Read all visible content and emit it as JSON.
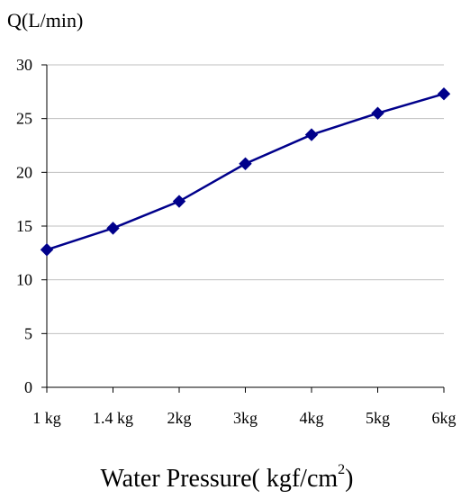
{
  "chart_data": {
    "type": "line",
    "title": "",
    "ylabel": "Q(L/min)",
    "xlabel": "Water Pressure( kgf/cm",
    "xlabel_superscript": "2",
    "xlabel_suffix": ")",
    "categories": [
      "1 kg",
      "1.4 kg",
      "2kg",
      "3kg",
      "4kg",
      "5kg",
      "6kg"
    ],
    "y_ticks": [
      0,
      5,
      10,
      15,
      20,
      25,
      30
    ],
    "ylim": [
      0,
      30
    ],
    "grid": true,
    "legend": "none",
    "series": [
      {
        "values": [
          12.8,
          14.8,
          17.3,
          20.8,
          23.5,
          25.5,
          27.3
        ],
        "color": "#00008b",
        "marker": "diamond"
      }
    ]
  }
}
